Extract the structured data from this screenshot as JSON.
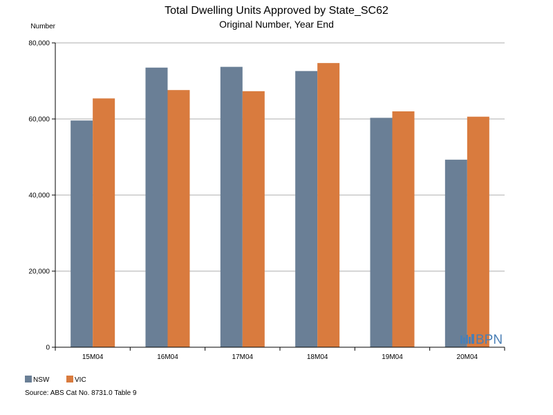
{
  "chart_data": {
    "type": "bar",
    "title": "Total Dwelling Units Approved by State_SC62",
    "subtitle": "Original Number, Year End",
    "ylabel": "Number",
    "xlabel": "",
    "categories": [
      "15M04",
      "16M04",
      "17M04",
      "18M04",
      "19M04",
      "20M04"
    ],
    "series": [
      {
        "name": "NSW",
        "color": "#6a7f96",
        "values": [
          59600,
          73500,
          73700,
          72600,
          60300,
          49300
        ]
      },
      {
        "name": "VIC",
        "color": "#d97b3e",
        "values": [
          65400,
          67600,
          67300,
          74700,
          62000,
          60600
        ]
      }
    ],
    "ylim": [
      0,
      80000
    ],
    "yticks": [
      0,
      20000,
      40000,
      60000,
      80000
    ],
    "ytick_labels": [
      "0",
      "20,000",
      "40,000",
      "60,000",
      "80,000"
    ],
    "grid": true,
    "legend": "bottom-left"
  },
  "source": "Source: ABS Cat No. 8731.0 Table 9",
  "logo": {
    "text": "BPN",
    "color": "#4a7fb5"
  }
}
